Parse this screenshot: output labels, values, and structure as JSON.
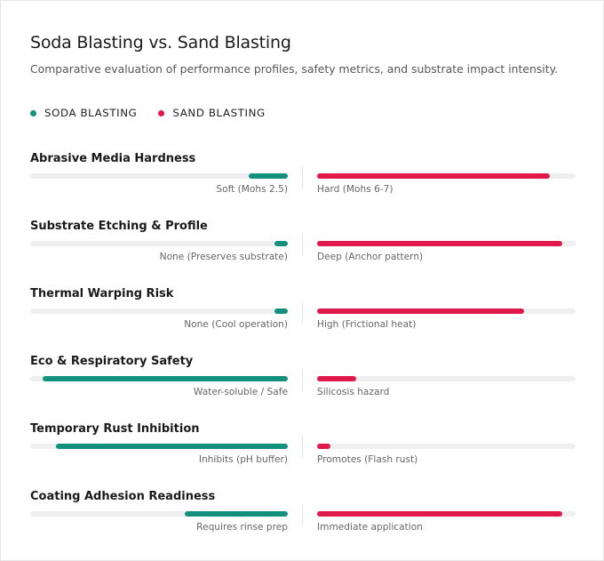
{
  "colors": {
    "soda": "#12927e",
    "sand": "#e0194a"
  },
  "chart_data": {
    "type": "bar",
    "title": "Soda Blasting vs. Sand Blasting",
    "subtitle": "Comparative evaluation of performance profiles, safety metrics, and substrate impact intensity.",
    "legend": [
      "SODA BLASTING",
      "SAND BLASTING"
    ],
    "legend_placement": "top-left",
    "scale": [
      0,
      100
    ],
    "series": [
      {
        "name": "SODA BLASTING",
        "values": [
          15,
          5,
          5,
          95,
          90,
          40
        ]
      },
      {
        "name": "SAND BLASTING",
        "values": [
          90,
          95,
          80,
          15,
          5,
          95
        ]
      }
    ],
    "categories": [
      "Abrasive Media Hardness",
      "Substrate Etching & Profile",
      "Thermal Warping Risk",
      "Eco & Respiratory Safety",
      "Temporary Rust Inhibition",
      "Coating Adhesion Readiness"
    ],
    "rows": [
      {
        "label": "Abrasive Media Hardness",
        "soda": 15,
        "sand": 90,
        "soda_text": "Soft (Mohs 2.5)",
        "sand_text": "Hard (Mohs 6-7)"
      },
      {
        "label": "Substrate Etching & Profile",
        "soda": 5,
        "sand": 95,
        "soda_text": "None (Preserves substrate)",
        "sand_text": "Deep (Anchor pattern)"
      },
      {
        "label": "Thermal Warping Risk",
        "soda": 5,
        "sand": 80,
        "soda_text": "None (Cool operation)",
        "sand_text": "High (Frictional heat)"
      },
      {
        "label": "Eco & Respiratory Safety",
        "soda": 95,
        "sand": 15,
        "soda_text": "Water-soluble / Safe",
        "sand_text": "Silicosis hazard"
      },
      {
        "label": "Temporary Rust Inhibition",
        "soda": 90,
        "sand": 5,
        "soda_text": "Inhibits (pH buffer)",
        "sand_text": "Promotes (Flash rust)"
      },
      {
        "label": "Coating Adhesion Readiness",
        "soda": 40,
        "sand": 95,
        "soda_text": "Requires rinse prep",
        "sand_text": "Immediate application"
      }
    ]
  }
}
